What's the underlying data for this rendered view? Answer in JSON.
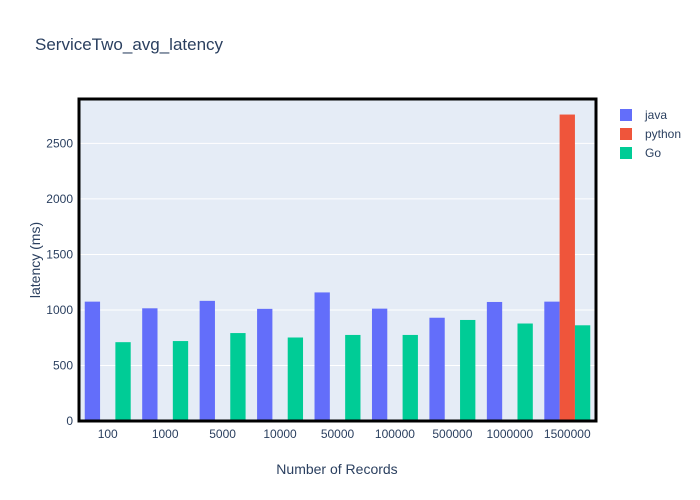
{
  "chart_data": {
    "type": "bar",
    "title": "ServiceTwo_avg_latency",
    "xlabel": "Number of Records",
    "ylabel": "latency (ms)",
    "categories": [
      "100",
      "1000",
      "5000",
      "10000",
      "50000",
      "100000",
      "500000",
      "1000000",
      "1500000"
    ],
    "series": [
      {
        "name": "java",
        "color": "#636efa",
        "values": [
          1075,
          1015,
          1082,
          1010,
          1158,
          1012,
          930,
          1072,
          1075
        ]
      },
      {
        "name": "python",
        "color": "#ef553b",
        "values": [
          null,
          null,
          null,
          null,
          null,
          null,
          null,
          null,
          2760
        ]
      },
      {
        "name": "Go",
        "color": "#00cc96",
        "values": [
          710,
          720,
          792,
          752,
          775,
          775,
          910,
          878,
          862
        ]
      }
    ],
    "yticks": [
      0,
      500,
      1000,
      1500,
      2000,
      2500
    ],
    "ylim": [
      0,
      2900
    ],
    "grid": true,
    "legend_position": "top-right",
    "plot_background": "#e5ecf6"
  }
}
